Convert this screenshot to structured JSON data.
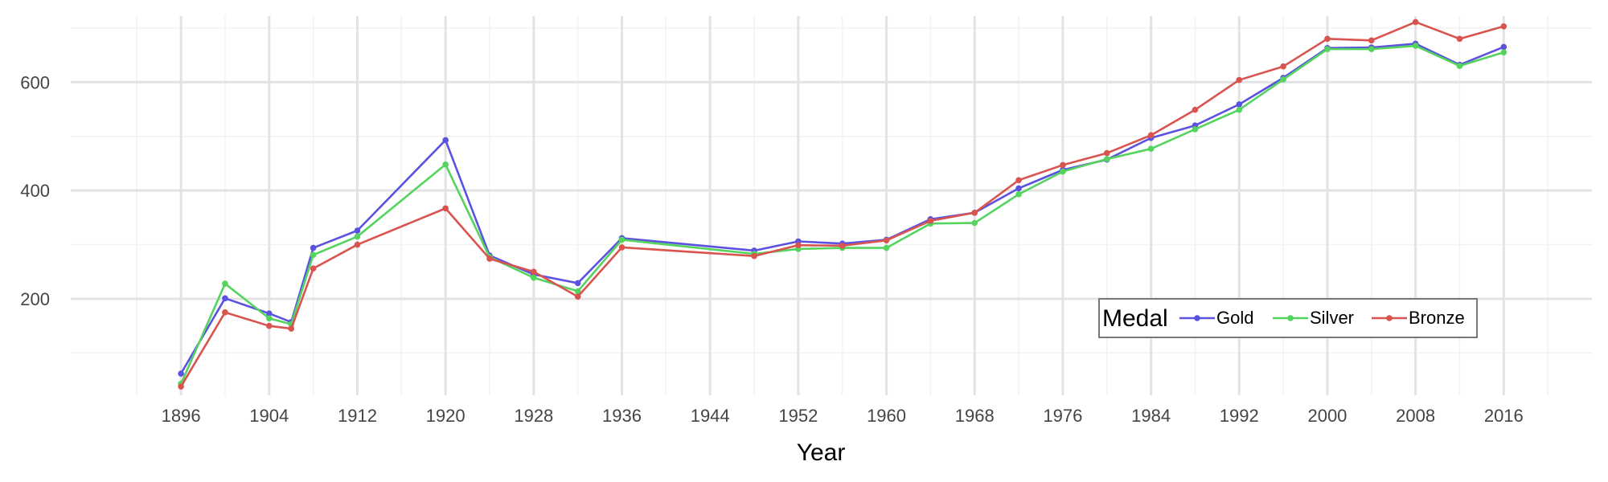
{
  "chart_data": {
    "type": "line",
    "title": "",
    "xlabel": "Year",
    "ylabel": "",
    "xlim": [
      1886,
      2024
    ],
    "ylim": [
      22,
      722
    ],
    "x_ticks": [
      1896,
      1904,
      1912,
      1920,
      1928,
      1936,
      1944,
      1952,
      1960,
      1968,
      1976,
      1984,
      1992,
      2000,
      2008,
      2016
    ],
    "y_ticks": [
      200,
      400,
      600
    ],
    "x_tick_labels": [
      "1896",
      "1904",
      "1912",
      "1920",
      "1928",
      "1936",
      "1944",
      "1952",
      "1960",
      "1968",
      "1976",
      "1984",
      "1992",
      "2000",
      "2008",
      "2016"
    ],
    "y_tick_labels": [
      "200",
      "400",
      "600"
    ],
    "grid": true,
    "legend": {
      "title": "Medal",
      "position": "bottom-right",
      "orientation": "horizontal"
    },
    "x": [
      1896,
      1900,
      1904,
      1906,
      1908,
      1912,
      1920,
      1924,
      1928,
      1932,
      1936,
      1948,
      1952,
      1956,
      1960,
      1964,
      1968,
      1972,
      1976,
      1980,
      1984,
      1988,
      1992,
      1996,
      2000,
      2004,
      2008,
      2012,
      2016
    ],
    "series": [
      {
        "name": "Gold",
        "color": "#5b52e0",
        "values": [
          62,
          201,
          173,
          157,
          294,
          326,
          493,
          280,
          245,
          229,
          312,
          289,
          306,
          302,
          309,
          347,
          359,
          404,
          438,
          457,
          497,
          520,
          559,
          608,
          663,
          664,
          671,
          632,
          665
        ]
      },
      {
        "name": "Silver",
        "color": "#54d45e",
        "values": [
          43,
          228,
          164,
          153,
          281,
          315,
          448,
          277,
          239,
          214,
          309,
          283,
          292,
          294,
          294,
          339,
          340,
          393,
          435,
          458,
          477,
          513,
          549,
          605,
          661,
          661,
          667,
          630,
          655
        ]
      },
      {
        "name": "Bronze",
        "color": "#d9534f",
        "values": [
          38,
          175,
          150,
          145,
          256,
          300,
          367,
          274,
          250,
          204,
          295,
          279,
          299,
          298,
          308,
          344,
          359,
          419,
          447,
          469,
          502,
          549,
          604,
          629,
          680,
          677,
          711,
          680,
          703
        ]
      }
    ]
  }
}
